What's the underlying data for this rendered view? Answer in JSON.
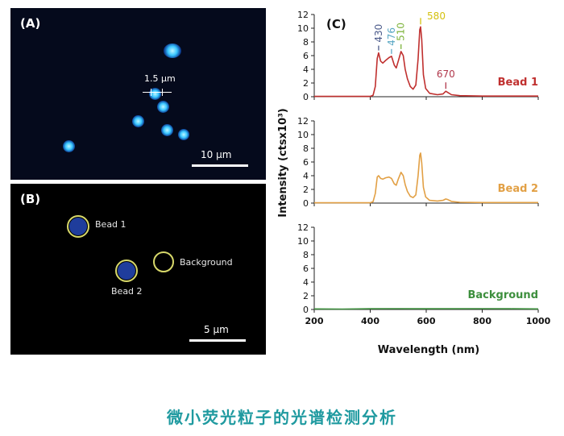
{
  "panelA": {
    "label": "(A)",
    "size_label": "1.5 µm",
    "scale_label": "10 µm"
  },
  "panelB": {
    "label": "(B)",
    "bead1_label": "Bead 1",
    "bead2_label": "Bead 2",
    "background_label": "Background",
    "scale_label": "5 µm"
  },
  "caption": "微小荧光粒子的光谱检测分析",
  "chart_data": {
    "type": "line",
    "panel_label": "(C)",
    "xlabel": "Wavelength (nm)",
    "ylabel": "Intensity (ctsx10³)",
    "xlim": [
      200,
      1000
    ],
    "ylim": [
      0,
      12
    ],
    "x_ticks": [
      200,
      400,
      600,
      800,
      1000
    ],
    "y_ticks": [
      0,
      2,
      4,
      6,
      8,
      10,
      12
    ],
    "grid": false,
    "series": [
      {
        "name": "Bead 1",
        "color": "#c0302f",
        "points": [
          [
            200,
            0.05
          ],
          [
            400,
            0.05
          ],
          [
            410,
            0.2
          ],
          [
            418,
            1.5
          ],
          [
            425,
            5.6
          ],
          [
            430,
            6.4
          ],
          [
            437,
            5.2
          ],
          [
            445,
            4.9
          ],
          [
            455,
            5.3
          ],
          [
            467,
            5.7
          ],
          [
            476,
            5.9
          ],
          [
            486,
            4.6
          ],
          [
            493,
            4.2
          ],
          [
            500,
            5.2
          ],
          [
            510,
            6.6
          ],
          [
            518,
            6.0
          ],
          [
            525,
            4.0
          ],
          [
            533,
            2.6
          ],
          [
            543,
            1.5
          ],
          [
            553,
            1.1
          ],
          [
            563,
            1.7
          ],
          [
            571,
            5.5
          ],
          [
            577,
            9.8
          ],
          [
            580,
            10.2
          ],
          [
            584,
            8.4
          ],
          [
            590,
            3.2
          ],
          [
            598,
            1.2
          ],
          [
            612,
            0.5
          ],
          [
            640,
            0.3
          ],
          [
            660,
            0.4
          ],
          [
            670,
            0.8
          ],
          [
            678,
            0.6
          ],
          [
            690,
            0.3
          ],
          [
            720,
            0.15
          ],
          [
            800,
            0.1
          ],
          [
            1000,
            0.1
          ]
        ],
        "annotations": [
          {
            "text": "430",
            "x": 430,
            "color": "#4b5a8a"
          },
          {
            "text": "476",
            "x": 476,
            "color": "#5ba8c4"
          },
          {
            "text": "510",
            "x": 510,
            "color": "#7db33a"
          },
          {
            "text": "580",
            "x": 580,
            "color": "#d4c10f"
          },
          {
            "text": "670",
            "x": 670,
            "color": "#b0374b"
          }
        ]
      },
      {
        "name": "Bead 2",
        "color": "#e2a045",
        "points": [
          [
            200,
            0.05
          ],
          [
            400,
            0.05
          ],
          [
            410,
            0.2
          ],
          [
            418,
            1.4
          ],
          [
            425,
            3.8
          ],
          [
            430,
            4.0
          ],
          [
            437,
            3.6
          ],
          [
            445,
            3.5
          ],
          [
            455,
            3.7
          ],
          [
            467,
            3.8
          ],
          [
            476,
            3.6
          ],
          [
            486,
            2.8
          ],
          [
            493,
            2.6
          ],
          [
            500,
            3.5
          ],
          [
            510,
            4.5
          ],
          [
            518,
            4.0
          ],
          [
            525,
            2.7
          ],
          [
            533,
            1.7
          ],
          [
            543,
            1.0
          ],
          [
            553,
            0.8
          ],
          [
            563,
            1.2
          ],
          [
            571,
            4.0
          ],
          [
            577,
            7.0
          ],
          [
            580,
            7.3
          ],
          [
            584,
            5.9
          ],
          [
            590,
            2.3
          ],
          [
            598,
            0.9
          ],
          [
            612,
            0.4
          ],
          [
            640,
            0.3
          ],
          [
            660,
            0.4
          ],
          [
            670,
            0.6
          ],
          [
            678,
            0.5
          ],
          [
            690,
            0.25
          ],
          [
            720,
            0.12
          ],
          [
            800,
            0.08
          ],
          [
            1000,
            0.08
          ]
        ]
      },
      {
        "name": "Background",
        "color": "#3d8f3d",
        "points": [
          [
            200,
            0.08
          ],
          [
            300,
            0.06
          ],
          [
            400,
            0.1
          ],
          [
            500,
            0.12
          ],
          [
            600,
            0.1
          ],
          [
            700,
            0.1
          ],
          [
            800,
            0.12
          ],
          [
            900,
            0.1
          ],
          [
            1000,
            0.08
          ]
        ]
      }
    ]
  }
}
